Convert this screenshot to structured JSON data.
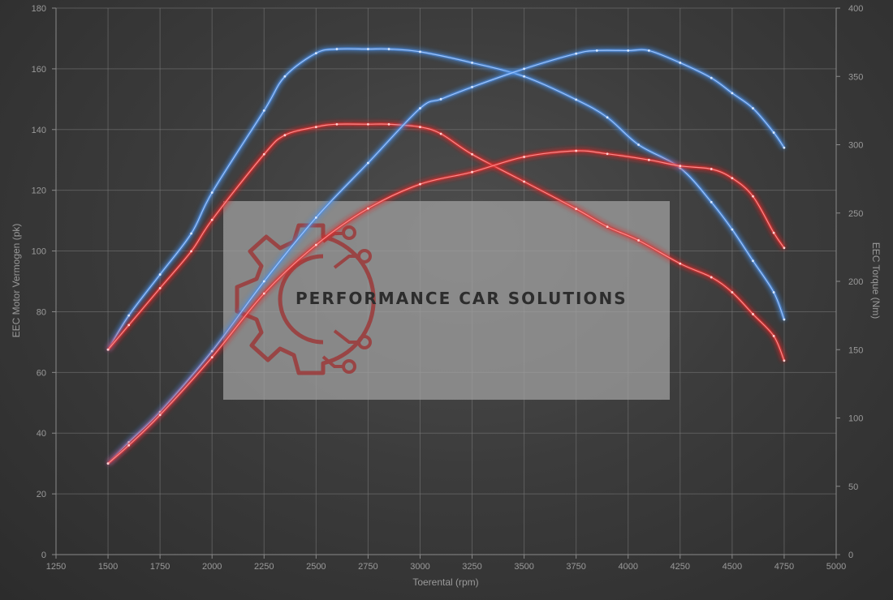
{
  "chart_data": {
    "type": "line",
    "xlabel": "Toerental (rpm)",
    "ylabel_left": "EEC Motor Vermogen (pk)",
    "ylabel_right": "EEC Torque (Nm)",
    "xlim": [
      1250,
      5000
    ],
    "ylim_left": [
      0,
      180
    ],
    "ylim_right": [
      0,
      400
    ],
    "grid": true,
    "x_ticks": [
      1250,
      1500,
      1750,
      2000,
      2250,
      2500,
      2750,
      3000,
      3250,
      3500,
      3750,
      4000,
      4250,
      4500,
      4750,
      5000
    ],
    "y_ticks_left": [
      0,
      20,
      40,
      60,
      80,
      100,
      120,
      140,
      160,
      180
    ],
    "y_ticks_right": [
      0,
      50,
      100,
      150,
      200,
      250,
      300,
      350,
      400
    ],
    "series": [
      {
        "color": "#4a8fe8",
        "axis": "right",
        "x": [
          1500,
          1600,
          1750,
          1900,
          2000,
          2250,
          2350,
          2500,
          2600,
          2750,
          2850,
          3000,
          3250,
          3500,
          3750,
          3900,
          4050,
          4250,
          4400,
          4500,
          4600,
          4700,
          4750
        ],
        "values": [
          150,
          175,
          205,
          235,
          265,
          325,
          350,
          367,
          370,
          370,
          370,
          368,
          360,
          350,
          333,
          320,
          300,
          283,
          258,
          238,
          215,
          192,
          172
        ]
      },
      {
        "color": "#e23030",
        "axis": "right",
        "x": [
          1500,
          1600,
          1750,
          1900,
          2000,
          2250,
          2350,
          2500,
          2600,
          2750,
          2850,
          3000,
          3100,
          3250,
          3500,
          3750,
          3900,
          4050,
          4250,
          4400,
          4500,
          4600,
          4700,
          4750
        ],
        "values": [
          150,
          168,
          195,
          222,
          245,
          293,
          307,
          313,
          315,
          315,
          315,
          313,
          308,
          293,
          273,
          253,
          240,
          230,
          213,
          203,
          192,
          176,
          160,
          142
        ]
      },
      {
        "color": "#4a8fe8",
        "axis": "left",
        "x": [
          1500,
          1600,
          1750,
          2000,
          2250,
          2500,
          2750,
          3000,
          3100,
          3250,
          3500,
          3750,
          3850,
          4000,
          4100,
          4250,
          4400,
          4500,
          4600,
          4700,
          4750
        ],
        "values": [
          30,
          37,
          47,
          67,
          90,
          111,
          129,
          147,
          150,
          154,
          160,
          165,
          166,
          166,
          166,
          162,
          157,
          152,
          147,
          139,
          134
        ]
      },
      {
        "color": "#e23030",
        "axis": "left",
        "x": [
          1500,
          1600,
          1750,
          2000,
          2250,
          2500,
          2750,
          3000,
          3250,
          3500,
          3750,
          3900,
          4100,
          4250,
          4400,
          4500,
          4600,
          4700,
          4750
        ],
        "values": [
          30,
          36,
          46,
          65,
          86,
          102,
          114,
          122,
          126,
          131,
          133,
          132,
          130,
          128,
          127,
          124,
          118,
          106,
          101
        ]
      }
    ]
  },
  "watermark": {
    "text": "PERFORMANCE CAR SOLUTIONS",
    "logo": "gear-circuit-logo"
  }
}
